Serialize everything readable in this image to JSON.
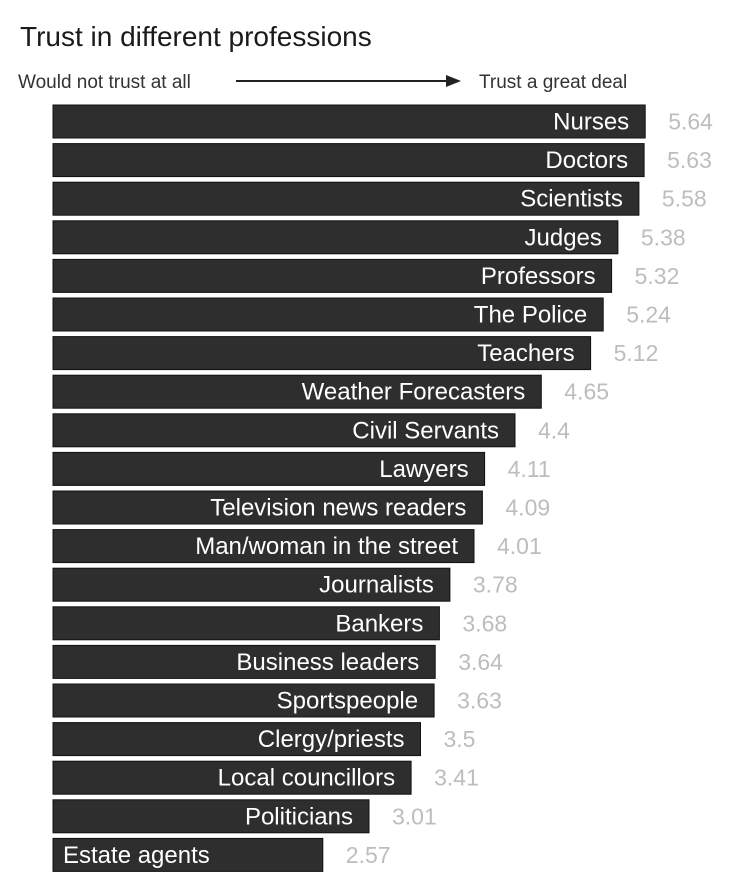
{
  "chart_data": {
    "type": "bar",
    "orientation": "horizontal",
    "title": "Trust in different professions",
    "scale_left_label": "Would not trust at all",
    "scale_right_label": "Trust a great deal",
    "categories": [
      "Nurses",
      "Doctors",
      "Scientists",
      "Judges",
      "Professors",
      "The Police",
      "Teachers",
      "Weather Forecasters",
      "Civil Servants",
      "Lawyers",
      "Television news readers",
      "Man/woman in the street",
      "Journalists",
      "Bankers",
      "Business leaders",
      "Sportspeople",
      "Clergy/priests",
      "Local councillors",
      "Politicians",
      "Estate agents"
    ],
    "values": [
      5.64,
      5.63,
      5.58,
      5.38,
      5.32,
      5.24,
      5.12,
      4.65,
      4.4,
      4.11,
      4.09,
      4.01,
      3.78,
      3.68,
      3.64,
      3.63,
      3.5,
      3.41,
      3.01,
      2.57
    ],
    "value_labels": [
      "5.64",
      "5.63",
      "5.58",
      "5.38",
      "5.32",
      "5.24",
      "5.12",
      "4.65",
      "4.4",
      "4.11",
      "4.09",
      "4.01",
      "3.78",
      "3.68",
      "3.64",
      "3.63",
      "3.5",
      "3.41",
      "3.01",
      "2.57"
    ],
    "bar_color": "#2e2e2e",
    "bar_border_color": "#111111",
    "label_color": "#ffffff",
    "value_label_color": "#bdbdbd",
    "grid": false,
    "legend": "none"
  }
}
